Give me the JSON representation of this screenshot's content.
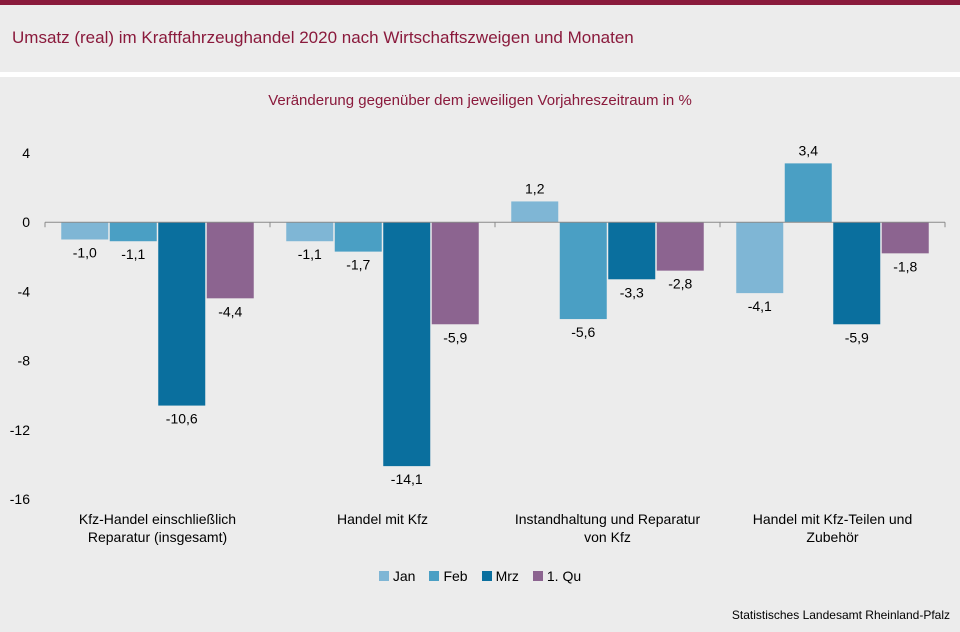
{
  "header": {
    "title": "Umsatz (real) im Kraftfahrzeughandel 2020 nach Wirtschaftszweigen und Monaten"
  },
  "source": "Statistisches Landesamt Rheinland-Pfalz",
  "colors": {
    "accent": "#8a1a3c",
    "background": "#ececec"
  },
  "chart_data": {
    "type": "bar",
    "title": "Veränderung  gegenüber  dem jeweiligen  Vorjahreszeitraum  in %",
    "xlabel": "",
    "ylabel": "",
    "ylim": [
      -16,
      4
    ],
    "yticks": [
      "4",
      "0",
      "-4",
      "-8",
      "-12",
      "-16"
    ],
    "grid": false,
    "legend_position": "bottom",
    "categories": [
      [
        "Kfz-Handel einschließlich",
        "Reparatur (insgesamt)"
      ],
      [
        "Handel mit Kfz"
      ],
      [
        "Instandhaltung und Reparatur",
        "von Kfz"
      ],
      [
        "Handel mit Kfz-Teilen und",
        "Zubehör"
      ]
    ],
    "series": [
      {
        "name": "Jan",
        "color": "#7fb6d5",
        "values": [
          -1.0,
          -1.1,
          1.2,
          -4.1
        ],
        "labels": [
          "-1,0",
          "-1,1",
          "1,2",
          "-4,1"
        ]
      },
      {
        "name": "Feb",
        "color": "#4a9fc4",
        "values": [
          -1.1,
          -1.7,
          -5.6,
          3.4
        ],
        "labels": [
          "-1,1",
          "-1,7",
          "-5,6",
          "3,4"
        ]
      },
      {
        "name": "Mrz",
        "color": "#0a6f9e",
        "values": [
          -10.6,
          -14.1,
          -3.3,
          -5.9
        ],
        "labels": [
          "-10,6",
          "-14,1",
          "-3,3",
          "-5,9"
        ]
      },
      {
        "name": "1. Qu",
        "color": "#8c6490",
        "values": [
          -4.4,
          -5.9,
          -2.8,
          -1.8
        ],
        "labels": [
          "-4,4",
          "-5,9",
          "-2,8",
          "-1,8"
        ]
      }
    ]
  }
}
